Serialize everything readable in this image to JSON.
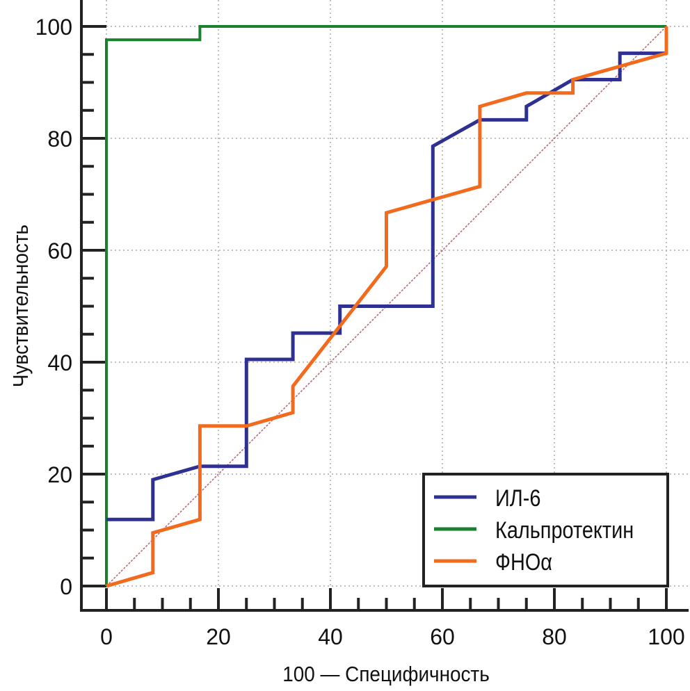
{
  "chart_data": {
    "type": "line",
    "title": "",
    "xlabel": "100 — Специфичность",
    "ylabel": "Чувствительность",
    "xlim": [
      0,
      100
    ],
    "ylim": [
      0,
      100
    ],
    "x_ticks": [
      "0",
      "20",
      "40",
      "60",
      "80",
      "100"
    ],
    "y_ticks": [
      "0",
      "20",
      "40",
      "60",
      "80",
      "100"
    ],
    "grid": true,
    "legend_position": "bottom-right",
    "reference_line": {
      "x": [
        0,
        100
      ],
      "y": [
        0,
        100
      ],
      "color": "#b5606a"
    },
    "series": [
      {
        "name": "ИЛ-6",
        "color": "#2e3192",
        "x": [
          0,
          8.3,
          8.3,
          16.7,
          25,
          25,
          33.3,
          33.3,
          41.7,
          41.7,
          58.3,
          58.3,
          66.7,
          75,
          75,
          83.3,
          91.7,
          91.7,
          100
        ],
        "y": [
          11.9,
          11.9,
          19.0,
          21.4,
          21.4,
          40.5,
          40.5,
          45.2,
          45.2,
          50.0,
          50.0,
          78.6,
          83.3,
          83.3,
          85.7,
          90.5,
          90.5,
          95.2,
          95.2
        ]
      },
      {
        "name": "Кальпротектин",
        "color": "#1a7f2e",
        "x": [
          0,
          0,
          16.7,
          16.7,
          100
        ],
        "y": [
          0,
          97.6,
          97.6,
          100,
          100
        ]
      },
      {
        "name": "ФНОα",
        "color": "#f26b1d",
        "x": [
          0,
          8.3,
          8.3,
          16.7,
          16.7,
          25,
          33.3,
          33.3,
          50,
          50,
          66.7,
          66.7,
          75,
          83.3,
          83.3,
          100,
          100
        ],
        "y": [
          0,
          2.4,
          9.5,
          11.9,
          28.6,
          28.6,
          31.0,
          35.7,
          57.1,
          66.7,
          71.4,
          85.7,
          88.1,
          88.1,
          90.5,
          95.2,
          100
        ]
      }
    ]
  }
}
